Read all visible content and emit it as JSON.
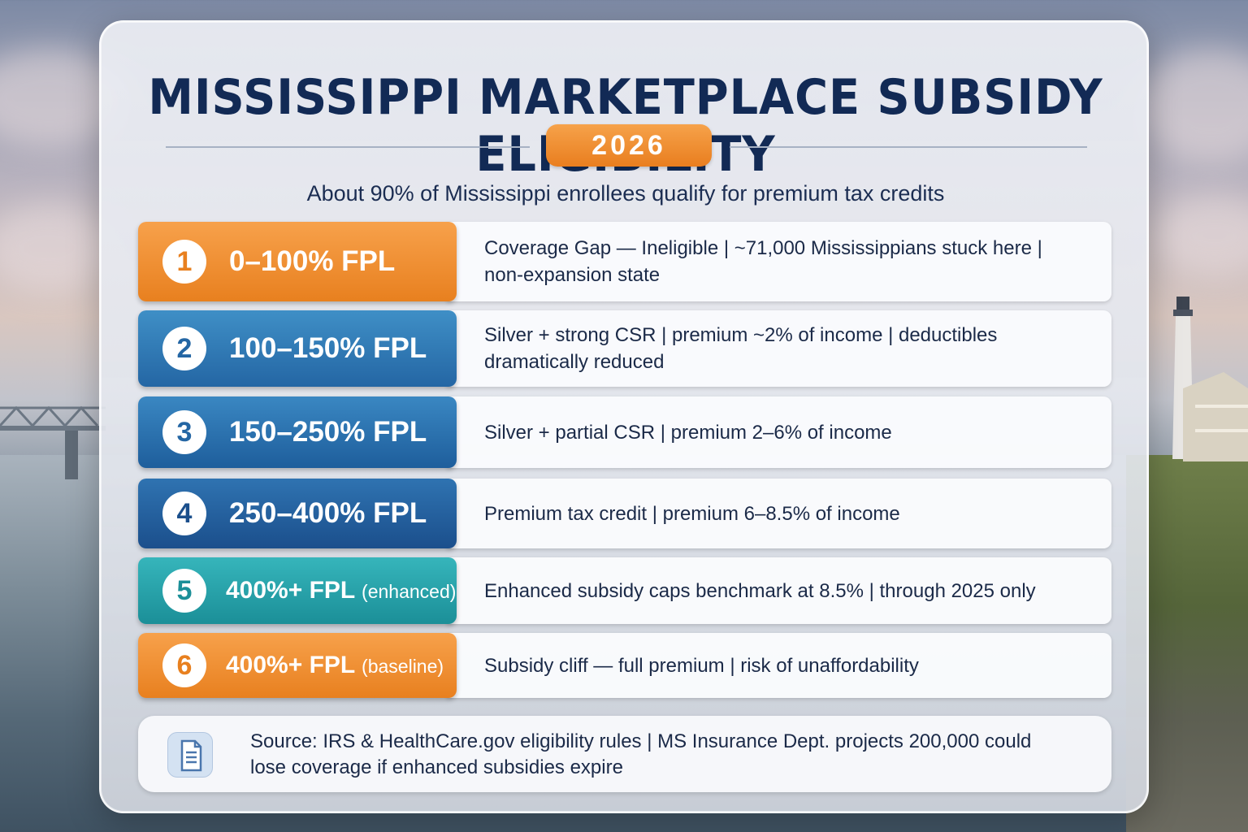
{
  "title": "MISSISSIPPI MARKETPLACE SUBSIDY ELIGIBILITY",
  "year": "2026",
  "subtitle": "About 90% of Mississippi enrollees qualify for premium tax credits",
  "tiers": [
    {
      "number": "1",
      "label": "0–100% FPL",
      "suffix": "",
      "color": "#e8801f",
      "description": "Coverage Gap — Ineligible | ~71,000 Mississippians stuck here | non-expansion state"
    },
    {
      "number": "2",
      "label": "100–150% FPL",
      "suffix": "",
      "color": "#2466a4",
      "description": "Silver + strong CSR | premium ~2% of income | deductibles dramatically reduced"
    },
    {
      "number": "3",
      "label": "150–250% FPL",
      "suffix": "",
      "color": "#1e5e9c",
      "description": "Silver + partial CSR | premium 2–6% of income"
    },
    {
      "number": "4",
      "label": "250–400% FPL",
      "suffix": "",
      "color": "#1b4f8c",
      "description": "Premium tax credit | premium 6–8.5% of income"
    },
    {
      "number": "5",
      "label": "400%+ FPL",
      "suffix": "(enhanced)",
      "color": "#1b8f98",
      "description": "Enhanced subsidy caps benchmark at 8.5% | through 2025 only"
    },
    {
      "number": "6",
      "label": "400%+ FPL",
      "suffix": "(baseline)",
      "color": "#e8801f",
      "description": "Subsidy cliff — full premium | risk of unaffordability"
    }
  ],
  "source": {
    "icon": "document-icon",
    "text": "Source: IRS & HealthCare.gov eligibility rules | MS Insurance Dept. projects 200,000 could lose coverage if enhanced subsidies expire"
  }
}
